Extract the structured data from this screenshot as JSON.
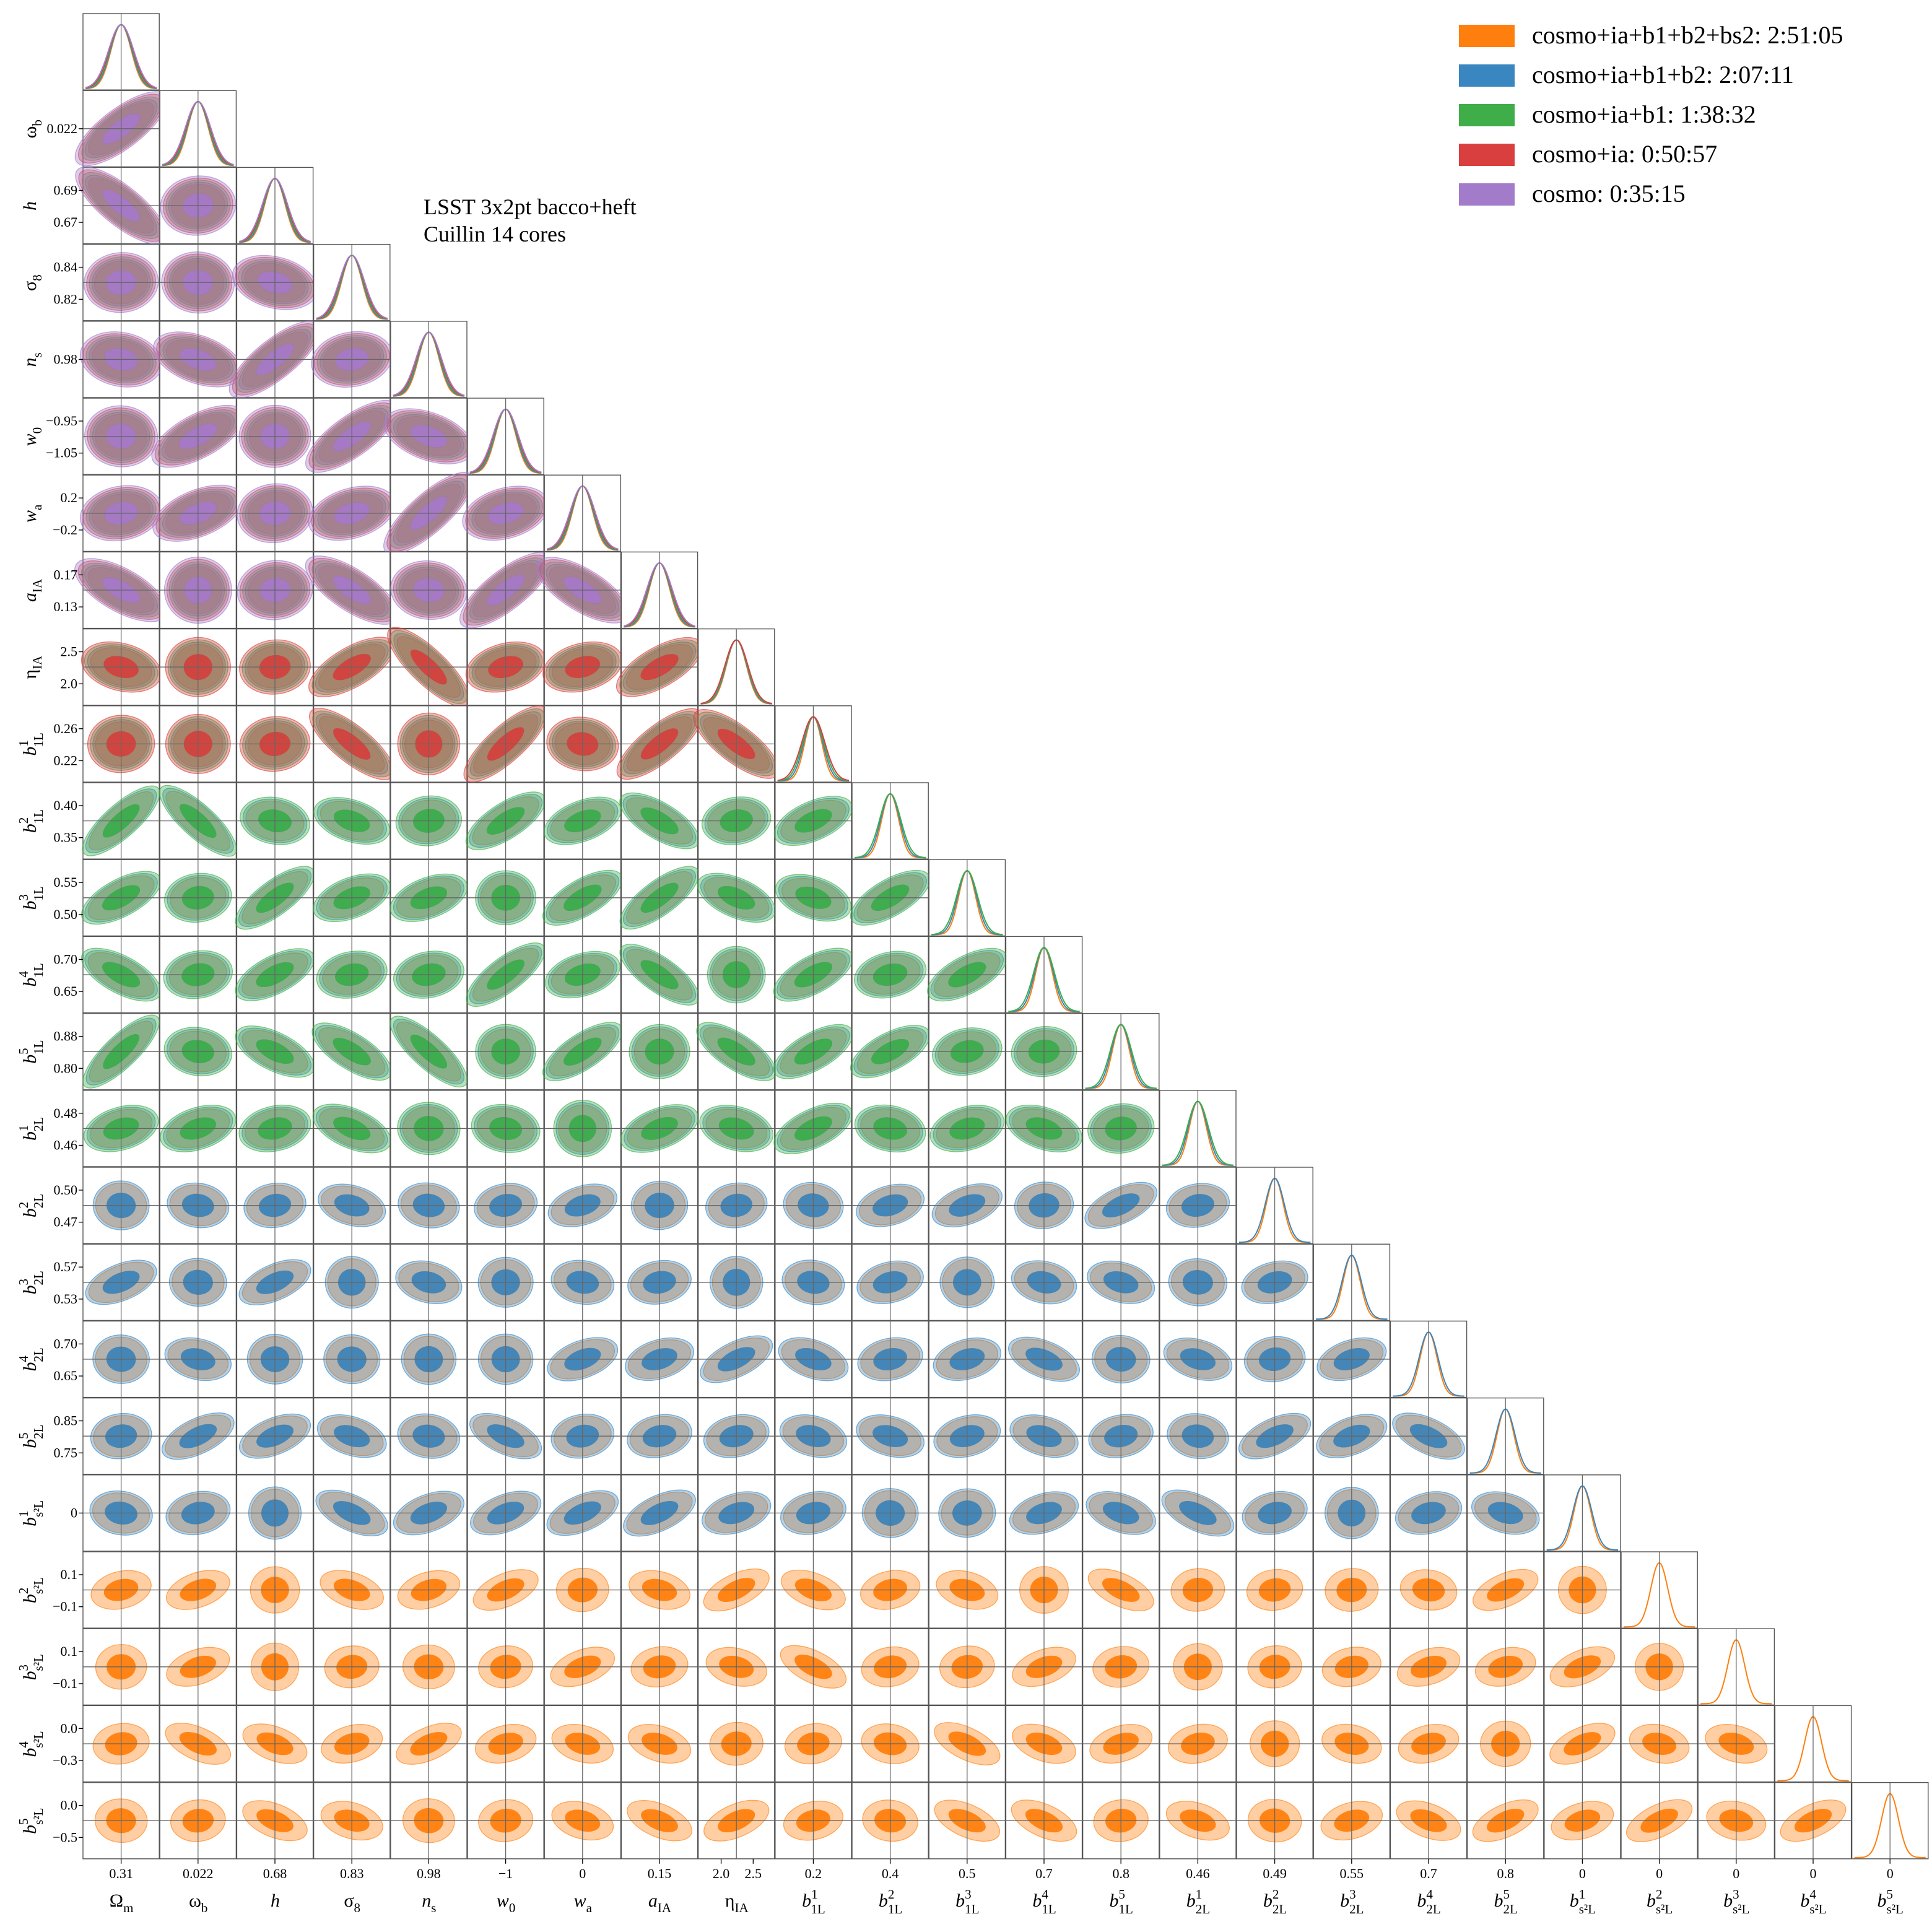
{
  "annotation": {
    "line1": "LSST 3x2pt bacco+heft",
    "line2": "Cuillin 14 cores"
  },
  "legend": [
    {
      "label": "cosmo+ia+b1+b2+bs2: 2:51:05",
      "color": "#ff7f0e"
    },
    {
      "label": "cosmo+ia+b1+b2: 2:07:11",
      "color": "#3a86c0"
    },
    {
      "label": "cosmo+ia+b1: 1:38:32",
      "color": "#3fae49"
    },
    {
      "label": "cosmo+ia: 0:50:57",
      "color": "#d93f3f"
    },
    {
      "label": "cosmo: 0:35:15",
      "color": "#a27ccb"
    }
  ],
  "chart_data": {
    "type": "triangle-corner-plot",
    "series": [
      {
        "name": "cosmo+ia+b1+b2+bs2: 2:51:05",
        "color": "#ff7f0e",
        "max_param": 24
      },
      {
        "name": "cosmo+ia+b1+b2: 2:07:11",
        "color": "#3a86c0",
        "max_param": 19
      },
      {
        "name": "cosmo+ia+b1: 1:38:32",
        "color": "#3fae49",
        "max_param": 14
      },
      {
        "name": "cosmo+ia: 0:50:57",
        "color": "#d93f3f",
        "max_param": 9
      },
      {
        "name": "cosmo: 0:35:15",
        "color": "#a27ccb",
        "max_param": 7
      }
    ],
    "parameters": [
      {
        "main": "Ω",
        "sub": "m",
        "sup": "",
        "italic": false,
        "mean": 0.312,
        "sigma": 0.006,
        "xticks": [
          "0.31"
        ],
        "yticks": []
      },
      {
        "main": "ω",
        "sub": "b",
        "sup": "",
        "italic": false,
        "mean": 0.0222,
        "sigma": 0.0004,
        "xticks": [
          "0.022"
        ],
        "yticks": [
          "0.022"
        ]
      },
      {
        "main": "h",
        "sub": "",
        "sup": "",
        "italic": true,
        "mean": 0.68,
        "sigma": 0.006,
        "xticks": [
          "0.68"
        ],
        "yticks": [
          "0.69",
          "0.67"
        ]
      },
      {
        "main": "σ",
        "sub": "8",
        "sup": "",
        "italic": false,
        "mean": 0.83,
        "sigma": 0.005,
        "xticks": [
          "0.83"
        ],
        "yticks": [
          "0.84",
          "0.82"
        ]
      },
      {
        "main": "n",
        "sub": "s",
        "sup": "",
        "italic": true,
        "mean": 0.965,
        "sigma": 0.006,
        "xticks": [
          "0.98"
        ],
        "yticks": [
          "0.98"
        ]
      },
      {
        "main": "w",
        "sub": "0",
        "sup": "",
        "italic": true,
        "mean": -1.0,
        "sigma": 0.03,
        "xticks": [
          "−1"
        ],
        "yticks": [
          "−0.95",
          "−1.05"
        ]
      },
      {
        "main": "w",
        "sub": "a",
        "sup": "",
        "italic": true,
        "mean": 0.0,
        "sigma": 0.12,
        "xticks": [
          "0"
        ],
        "yticks": [
          "0.2",
          "−0.2"
        ]
      },
      {
        "main": "a",
        "sub": "IA",
        "sup": "",
        "italic": true,
        "mean": 0.15,
        "sigma": 0.01,
        "xticks": [
          "0.15"
        ],
        "yticks": [
          "0.17",
          "0.13"
        ]
      },
      {
        "main": "η",
        "sub": "IA",
        "sup": "",
        "italic": false,
        "mean": 2.2,
        "sigma": 0.15,
        "xticks": [
          "2.0",
          "2.5"
        ],
        "yticks": [
          "2.5",
          "2.0"
        ]
      },
      {
        "main": "b",
        "sub": "1L",
        "sup": "1",
        "italic": true,
        "mean": 0.24,
        "sigma": 0.01,
        "xticks": [
          "0.2"
        ],
        "yticks": [
          "0.26",
          "0.22"
        ]
      },
      {
        "main": "b",
        "sub": "1L",
        "sup": "2",
        "italic": true,
        "mean": 0.38,
        "sigma": 0.012,
        "xticks": [
          "0.4"
        ],
        "yticks": [
          "0.40",
          "0.35"
        ]
      },
      {
        "main": "b",
        "sub": "1L",
        "sup": "3",
        "italic": true,
        "mean": 0.525,
        "sigma": 0.012,
        "xticks": [
          "0.5"
        ],
        "yticks": [
          "0.55",
          "0.50"
        ]
      },
      {
        "main": "b",
        "sub": "1L",
        "sup": "4",
        "italic": true,
        "mean": 0.675,
        "sigma": 0.015,
        "xticks": [
          "0.7"
        ],
        "yticks": [
          "0.70",
          "0.65"
        ]
      },
      {
        "main": "b",
        "sub": "1L",
        "sup": "5",
        "italic": true,
        "mean": 0.83,
        "sigma": 0.02,
        "xticks": [
          "0.8"
        ],
        "yticks": [
          "0.88",
          "0.80"
        ]
      },
      {
        "main": "b",
        "sub": "2L",
        "sup": "1",
        "italic": true,
        "mean": 0.465,
        "sigma": 0.004,
        "xticks": [
          "0.46"
        ],
        "yticks": [
          "0.48",
          "0.46"
        ]
      },
      {
        "main": "b",
        "sub": "2L",
        "sup": "2",
        "italic": true,
        "mean": 0.485,
        "sigma": 0.005,
        "xticks": [
          "0.49"
        ],
        "yticks": [
          "0.50",
          "0.47"
        ]
      },
      {
        "main": "b",
        "sub": "2L",
        "sup": "3",
        "italic": true,
        "mean": 0.55,
        "sigma": 0.006,
        "xticks": [
          "0.55"
        ],
        "yticks": [
          "0.57",
          "0.53"
        ]
      },
      {
        "main": "b",
        "sub": "2L",
        "sup": "4",
        "italic": true,
        "mean": 0.67,
        "sigma": 0.01,
        "xticks": [
          "0.7"
        ],
        "yticks": [
          "0.70",
          "0.65"
        ]
      },
      {
        "main": "b",
        "sub": "2L",
        "sup": "5",
        "italic": true,
        "mean": 0.8,
        "sigma": 0.02,
        "xticks": [
          "0.8"
        ],
        "yticks": [
          "0.85",
          "0.75"
        ]
      },
      {
        "main": "b",
        "sub": "s²L",
        "sup": "1",
        "italic": true,
        "mean": 0.0,
        "sigma": 0.06,
        "xticks": [
          "0"
        ],
        "yticks": [
          "0"
        ]
      },
      {
        "main": "b",
        "sub": "s²L",
        "sup": "2",
        "italic": true,
        "mean": 0.0,
        "sigma": 0.06,
        "xticks": [
          "0"
        ],
        "yticks": [
          "0.1",
          "−0.1"
        ]
      },
      {
        "main": "b",
        "sub": "s²L",
        "sup": "3",
        "italic": true,
        "mean": 0.0,
        "sigma": 0.06,
        "xticks": [
          "0"
        ],
        "yticks": [
          "0.1",
          "−0.1"
        ]
      },
      {
        "main": "b",
        "sub": "s²L",
        "sup": "4",
        "italic": true,
        "mean": 0.0,
        "sigma": 0.15,
        "xticks": [
          "0"
        ],
        "yticks": [
          "0.0",
          "−0.3"
        ]
      },
      {
        "main": "b",
        "sub": "s²L",
        "sup": "5",
        "italic": true,
        "mean": 0.0,
        "sigma": 0.25,
        "xticks": [
          "0"
        ],
        "yticks": [
          "0.0",
          "−0.5"
        ]
      }
    ]
  }
}
